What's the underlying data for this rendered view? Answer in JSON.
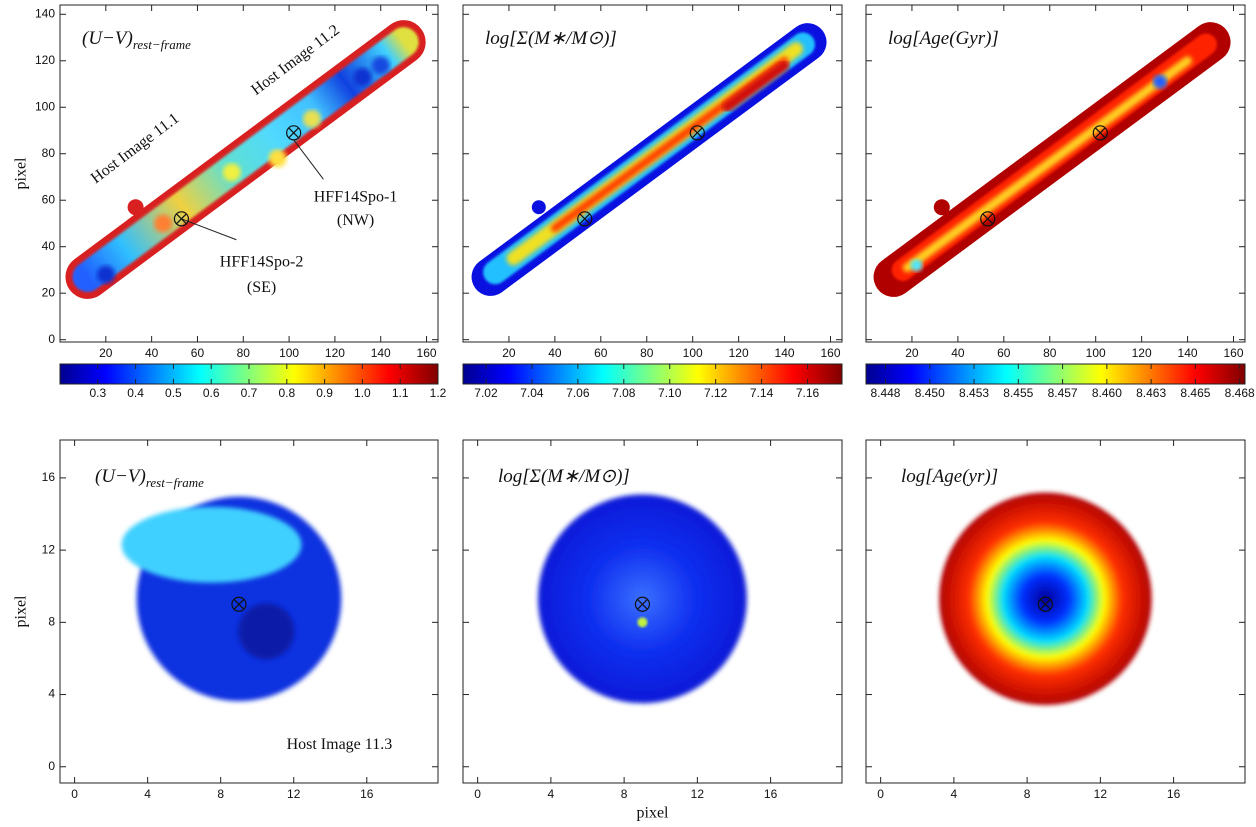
{
  "chart_data": [
    {
      "type": "image",
      "colormap": "jet",
      "title": "(U−V)",
      "title_sub": "rest−frame",
      "ylabel": "pixel",
      "xlim": [
        0,
        165
      ],
      "ylim": [
        -1,
        144
      ],
      "xticks": [
        20,
        40,
        60,
        80,
        100,
        120,
        140,
        160
      ],
      "yticks": [
        0,
        20,
        40,
        60,
        80,
        100,
        120,
        140
      ],
      "ytick_labels": true,
      "markers": [
        {
          "x": 53,
          "y": 52
        },
        {
          "x": 102,
          "y": 89
        }
      ],
      "annotations": [
        "Host Image 11.2",
        "Host Image 11.1",
        "HFF14Spo-1",
        "(NW)",
        "HFF14Spo-2",
        "(SE)"
      ],
      "colorbar": {
        "lim": [
          0.2,
          1.2
        ],
        "ticks": [
          0.3,
          0.4,
          0.5,
          0.6,
          0.7,
          0.8,
          0.9,
          {
            "value": 1.0,
            "label": "1.0"
          },
          1.1,
          1.2
        ]
      }
    },
    {
      "type": "image",
      "colormap": "jet",
      "title": "log[Σ(M∗/M⊙)]",
      "xlim": [
        0,
        165
      ],
      "ylim": [
        -1,
        144
      ],
      "xticks": [
        20,
        40,
        60,
        80,
        100,
        120,
        140,
        160
      ],
      "yticks": [
        0,
        20,
        40,
        60,
        80,
        100,
        120,
        140
      ],
      "ytick_labels": false,
      "markers": [
        {
          "x": 53,
          "y": 52
        },
        {
          "x": 102,
          "y": 89
        }
      ],
      "colorbar": {
        "lim": [
          7.01,
          7.175
        ],
        "ticks": [
          7.02,
          7.04,
          7.06,
          7.08,
          {
            "value": 7.1,
            "label": "7.10"
          },
          7.12,
          7.14,
          7.16
        ]
      }
    },
    {
      "type": "image",
      "colormap": "jet",
      "title": "log[Age(Gyr)]",
      "xlim": [
        0,
        165
      ],
      "ylim": [
        -1,
        144
      ],
      "xticks": [
        20,
        40,
        60,
        80,
        100,
        120,
        140,
        160
      ],
      "yticks": [
        0,
        20,
        40,
        60,
        80,
        100,
        120,
        140
      ],
      "ytick_labels": false,
      "markers": [
        {
          "x": 53,
          "y": 52
        },
        {
          "x": 102,
          "y": 89
        }
      ],
      "colorbar": {
        "lim": [
          8.4464,
          8.4678
        ],
        "ticks": [
          {
            "value": 8.4475,
            "label": "8.448"
          },
          {
            "value": 8.45,
            "label": "8.450"
          },
          {
            "value": 8.4525,
            "label": "8.453"
          },
          {
            "value": 8.455,
            "label": "8.455"
          },
          {
            "value": 8.4575,
            "label": "8.457"
          },
          {
            "value": 8.46,
            "label": "8.460"
          },
          {
            "value": 8.4625,
            "label": "8.463"
          },
          {
            "value": 8.465,
            "label": "8.465"
          },
          {
            "value": 8.4675,
            "label": "8.468"
          }
        ]
      }
    },
    {
      "type": "image",
      "colormap": "jet",
      "title": "(U−V)",
      "title_sub": "rest−frame",
      "ylabel": "pixel",
      "xlim": [
        -0.8,
        19.9
      ],
      "ylim": [
        -0.9,
        18.1
      ],
      "xticks": [
        0,
        4,
        8,
        12,
        16
      ],
      "yticks": [
        0,
        4,
        8,
        12,
        16
      ],
      "ytick_labels": true,
      "markers": [
        {
          "x": 9,
          "y": 9
        }
      ],
      "annotations": [
        "Host Image 11.3"
      ]
    },
    {
      "type": "image",
      "colormap": "jet",
      "title": "log[Σ(M∗/M⊙)]",
      "xlabel": "pixel",
      "xlim": [
        -0.8,
        19.9
      ],
      "ylim": [
        -0.9,
        18.1
      ],
      "xticks": [
        0,
        4,
        8,
        12,
        16
      ],
      "yticks": [
        0,
        4,
        8,
        12,
        16
      ],
      "ytick_labels": false,
      "markers": [
        {
          "x": 9,
          "y": 9
        }
      ]
    },
    {
      "type": "image",
      "colormap": "jet",
      "title": "log[Age(yr)]",
      "xlim": [
        -0.8,
        19.9
      ],
      "ylim": [
        -0.9,
        18.1
      ],
      "xticks": [
        0,
        4,
        8,
        12,
        16
      ],
      "yticks": [
        0,
        4,
        8,
        12,
        16
      ],
      "ytick_labels": false,
      "markers": [
        {
          "x": 9,
          "y": 9
        }
      ]
    }
  ]
}
